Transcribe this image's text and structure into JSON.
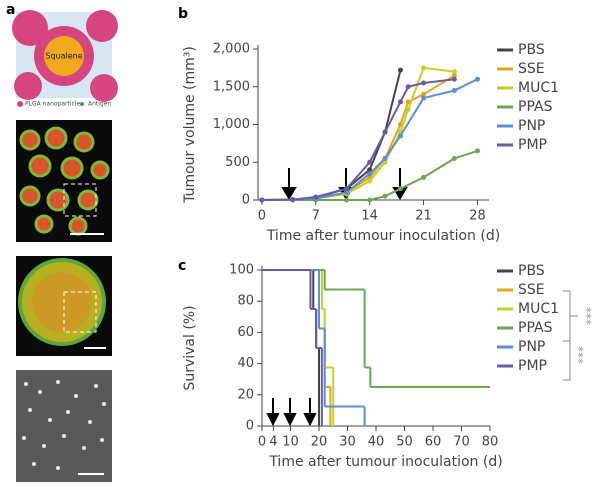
{
  "panel_labels": [
    "a",
    "b",
    "c"
  ],
  "illustration": {
    "core_label": "Squalene",
    "legend": [
      "PLGA nanoparticle",
      "Antigen"
    ]
  },
  "chart_data": [
    {
      "type": "line",
      "ylabel": "Tumour volume (mm³)",
      "xlabel": "Time after tumour inoculation (d)",
      "xlim": [
        -0.5,
        29.5
      ],
      "xticks": [
        0,
        7,
        14,
        21,
        28
      ],
      "ylim": [
        0,
        2000
      ],
      "yticks": [
        0,
        {
          "value": 500,
          "label": "500"
        },
        {
          "value": 1000,
          "label": "1,000"
        },
        {
          "value": 1500,
          "label": "1,500"
        },
        {
          "value": 2000,
          "label": "2,000"
        }
      ],
      "series": [
        {
          "name": "PBS",
          "color": "#444444",
          "x": [
            0,
            4,
            7,
            11,
            14,
            16,
            18
          ],
          "values": [
            0,
            5,
            30,
            150,
            400,
            900,
            1720
          ]
        },
        {
          "name": "SSE",
          "color": "#e8a317",
          "x": [
            0,
            4,
            7,
            11,
            14,
            16,
            18,
            19,
            21,
            25
          ],
          "values": [
            0,
            5,
            20,
            100,
            300,
            550,
            1000,
            1300,
            1400,
            1650
          ]
        },
        {
          "name": "MUC1",
          "color": "#c3d12a",
          "x": [
            0,
            4,
            7,
            11,
            14,
            16,
            18,
            19,
            21,
            25
          ],
          "values": [
            0,
            5,
            20,
            80,
            250,
            500,
            900,
            1200,
            1750,
            1700
          ]
        },
        {
          "name": "PPAS",
          "color": "#6aa84f",
          "x": [
            0,
            4,
            7,
            11,
            14,
            16,
            18,
            21,
            25,
            28
          ],
          "values": [
            0,
            0,
            0,
            0,
            0,
            50,
            150,
            300,
            550,
            650
          ]
        },
        {
          "name": "PNP",
          "color": "#5b8fd6",
          "x": [
            0,
            4,
            7,
            11,
            14,
            16,
            18,
            21,
            25,
            28
          ],
          "values": [
            0,
            5,
            20,
            100,
            350,
            550,
            850,
            1350,
            1450,
            1600
          ]
        },
        {
          "name": "PMP",
          "color": "#6a5aa8",
          "x": [
            0,
            4,
            7,
            11,
            14,
            16,
            18,
            19,
            21,
            25
          ],
          "values": [
            0,
            5,
            40,
            150,
            500,
            900,
            1300,
            1500,
            1550,
            1600
          ]
        }
      ]
    },
    {
      "type": "step",
      "ylabel": "Survival (%)",
      "xlabel": "Time after tumour inoculation (d)",
      "xlim": [
        0,
        80
      ],
      "xticks": [
        0,
        4,
        10,
        20,
        30,
        40,
        50,
        60,
        70,
        80
      ],
      "ylim": [
        0,
        100
      ],
      "yticks": [
        0,
        20,
        40,
        60,
        80,
        100
      ],
      "annotations": [
        "***",
        "***"
      ],
      "series": [
        {
          "name": "PBS",
          "color": "#444444",
          "x": [
            0,
            18,
            19,
            20
          ],
          "values": [
            100,
            75,
            50,
            0
          ]
        },
        {
          "name": "SSE",
          "color": "#e8a317",
          "x": [
            0,
            20,
            22,
            24
          ],
          "values": [
            100,
            62.5,
            25,
            0
          ]
        },
        {
          "name": "MUC1",
          "color": "#c3d12a",
          "x": [
            0,
            21,
            22,
            25
          ],
          "values": [
            100,
            75,
            37.5,
            0
          ]
        },
        {
          "name": "PPAS",
          "color": "#6aa84f",
          "x": [
            0,
            22,
            36,
            38,
            80
          ],
          "values": [
            100,
            87.5,
            37.5,
            25,
            25
          ]
        },
        {
          "name": "PNP",
          "color": "#5b8fd6",
          "x": [
            0,
            20,
            22,
            36
          ],
          "values": [
            100,
            62.5,
            12.5,
            0
          ]
        },
        {
          "name": "PMP",
          "color": "#6a5aa8",
          "x": [
            0,
            17,
            19,
            21
          ],
          "values": [
            100,
            75,
            50,
            0
          ]
        }
      ]
    }
  ]
}
